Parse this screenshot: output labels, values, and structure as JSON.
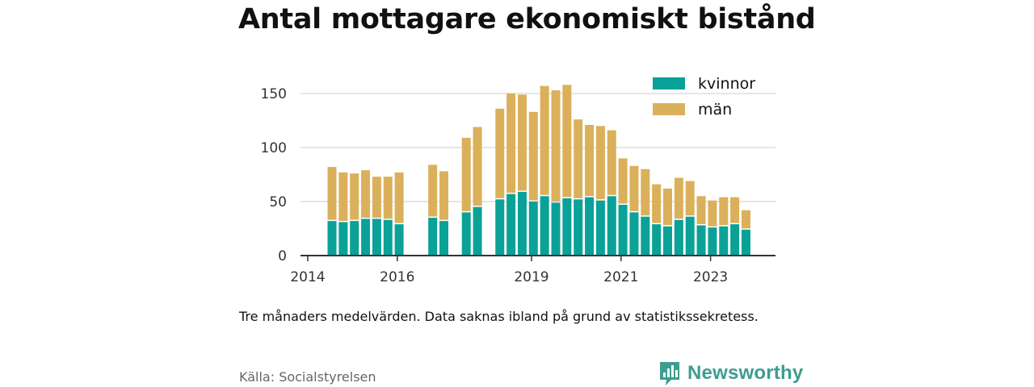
{
  "title": "Antal mottagare ekonomiskt bistånd",
  "note": "Tre månaders medelvärden. Data saknas ibland på grund av statistikssekretess.",
  "source": "Källa: Socialstyrelsen",
  "brand": {
    "name": "Newsworthy",
    "icon": "newsworthy-logo-icon",
    "color": "#3e9d8f"
  },
  "chart_data": {
    "type": "bar",
    "stacked": true,
    "ylim": [
      0,
      160
    ],
    "yticks": [
      0,
      50,
      100,
      150
    ],
    "xticks": [
      "2014",
      "2016",
      "2019",
      "2021",
      "2023"
    ],
    "grid": true,
    "legend_position": "top-right",
    "categories": [
      "2014-06",
      "2014-09",
      "2014-12",
      "2015-03",
      "2015-06",
      "2015-09",
      "2015-12",
      "2016-03",
      "2016-06",
      "2016-09",
      "2016-12",
      "2017-03",
      "2017-06",
      "2017-09",
      "2017-12",
      "2018-03",
      "2018-06",
      "2018-09",
      "2018-12",
      "2019-03",
      "2019-06",
      "2019-09",
      "2019-12",
      "2020-03",
      "2020-06",
      "2020-09",
      "2020-12",
      "2021-03",
      "2021-06",
      "2021-09",
      "2021-12",
      "2022-03",
      "2022-06",
      "2022-09",
      "2022-12",
      "2023-03",
      "2023-06",
      "2023-09",
      "2023-12"
    ],
    "series": [
      {
        "name": "kvinnor",
        "color": "#0aa198",
        "values": [
          32,
          31,
          32,
          34,
          34,
          33,
          29,
          null,
          null,
          35,
          32,
          null,
          40,
          45,
          null,
          52,
          57,
          59,
          50,
          55,
          49,
          53,
          52,
          54,
          51,
          55,
          47,
          40,
          36,
          29,
          27,
          33,
          36,
          28,
          26,
          27,
          29,
          24,
          null
        ]
      },
      {
        "name": "män",
        "color": "#dbb05b",
        "values": [
          50,
          46,
          44,
          45,
          39,
          40,
          48,
          null,
          null,
          49,
          46,
          null,
          69,
          74,
          null,
          84,
          93,
          90,
          83,
          102,
          104,
          105,
          74,
          67,
          69,
          61,
          43,
          43,
          44,
          37,
          35,
          39,
          33,
          27,
          25,
          27,
          25,
          18,
          null
        ]
      }
    ]
  }
}
